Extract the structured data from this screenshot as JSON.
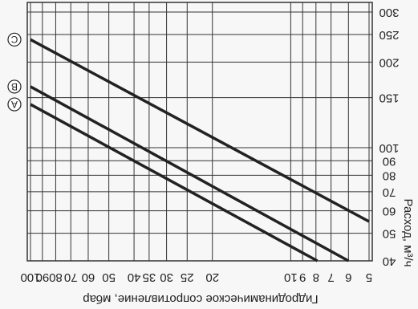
{
  "chart_data": {
    "type": "line",
    "xlabel": "Гидродинамическое сопротивление, мбар",
    "ylabel": "Расход, м³/ч",
    "xscale": "log",
    "yscale": "log",
    "grid": true,
    "color": "#222222",
    "xlim": [
      100,
      5
    ],
    "ylim": [
      40,
      300
    ],
    "xticks": [
      100,
      90,
      80,
      70,
      60,
      50,
      40,
      35,
      30,
      25,
      20,
      10,
      9,
      8,
      7,
      6,
      5
    ],
    "yticks": [
      40,
      50,
      60,
      70,
      80,
      90,
      100,
      150,
      200,
      250,
      300
    ],
    "series": [
      {
        "name": "A",
        "x": [
          100,
          7.9
        ],
        "values": [
          142,
          40
        ]
      },
      {
        "name": "B",
        "x": [
          100,
          6
        ],
        "values": [
          164,
          40
        ]
      },
      {
        "name": "C",
        "x": [
          100,
          5
        ],
        "values": [
          240,
          55
        ]
      }
    ]
  }
}
